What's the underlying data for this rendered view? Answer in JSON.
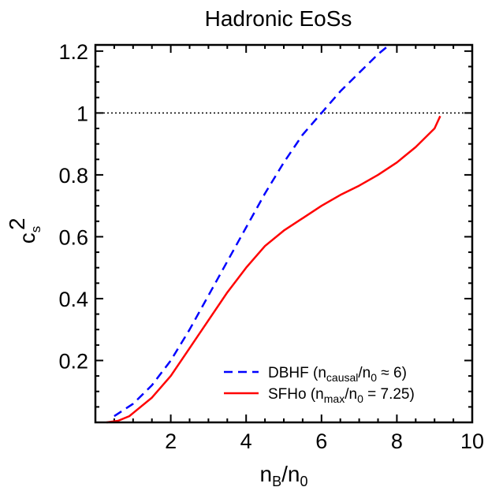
{
  "chart_data": {
    "type": "line",
    "title": "Hadronic EoSs",
    "xlabel": {
      "base": "n",
      "sub": "B",
      "rest": "/n",
      "sub2": "0"
    },
    "ylabel": {
      "base": "c",
      "sup": "2",
      "sub": "s"
    },
    "xlim": [
      0,
      10
    ],
    "ylim": [
      0,
      1.22
    ],
    "xticks": [
      2,
      4,
      6,
      8,
      10
    ],
    "yticks": [
      0.2,
      0.4,
      0.6,
      0.8,
      1,
      1.2
    ],
    "xtick_labels": [
      "2",
      "4",
      "6",
      "8",
      "10"
    ],
    "ytick_labels": [
      "0.2",
      "0.4",
      "0.6",
      "0.8",
      "1",
      "1.2"
    ],
    "reference_line": {
      "y": 1.0,
      "style": "dotted",
      "color": "#000000"
    },
    "legend_position": "bottom-right",
    "series": [
      {
        "name": "DBHF",
        "legend_label": {
          "pre": "DBHF (n",
          "sub": "causal",
          "mid": "/n",
          "sub2": "0",
          "post": " ≈ 6)"
        },
        "color": "#0000ff",
        "style": "dashed",
        "x": [
          0.5,
          1.0,
          1.5,
          2.0,
          2.5,
          3.0,
          3.5,
          4.0,
          4.5,
          5.0,
          5.5,
          6.0,
          6.5,
          7.0,
          7.5,
          7.8
        ],
        "y": [
          0.02,
          0.06,
          0.12,
          0.2,
          0.3,
          0.41,
          0.52,
          0.63,
          0.74,
          0.84,
          0.93,
          1.0,
          1.07,
          1.13,
          1.19,
          1.22
        ]
      },
      {
        "name": "SFHo",
        "legend_label": {
          "pre": "SFHo (n",
          "sub": "max",
          "mid": "/n",
          "sub2": "0",
          "post": " = 7.25)"
        },
        "color": "#ff0000",
        "style": "solid",
        "x": [
          0.3,
          0.6,
          0.9,
          1.0,
          1.5,
          2.0,
          2.5,
          3.0,
          3.5,
          4.0,
          4.5,
          5.0,
          5.5,
          6.0,
          6.5,
          7.0,
          7.5,
          8.0,
          8.5,
          9.0,
          9.15
        ],
        "y": [
          0.0,
          0.005,
          0.02,
          0.03,
          0.08,
          0.15,
          0.24,
          0.33,
          0.42,
          0.5,
          0.57,
          0.62,
          0.66,
          0.7,
          0.735,
          0.765,
          0.8,
          0.84,
          0.89,
          0.95,
          0.99
        ]
      }
    ]
  }
}
